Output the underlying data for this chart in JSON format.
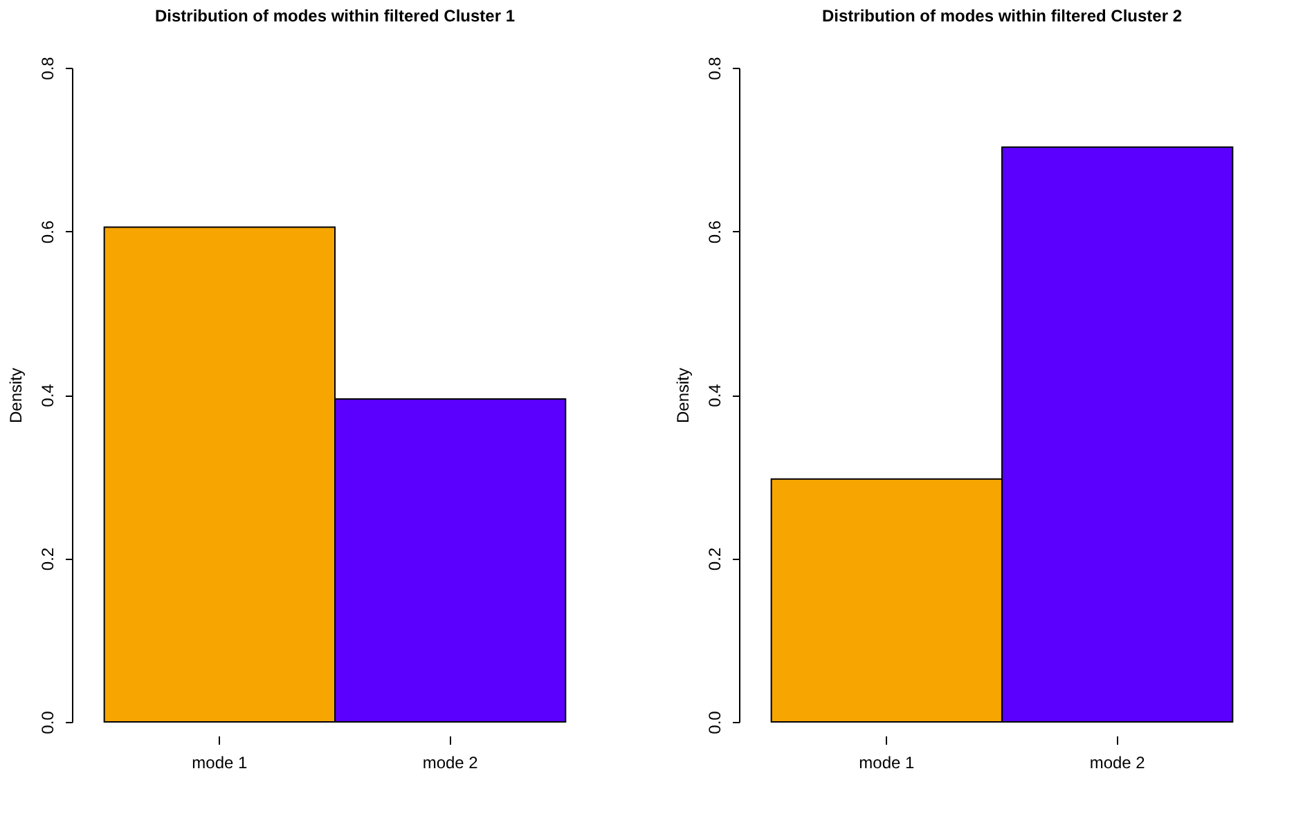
{
  "chart_data": [
    {
      "type": "bar",
      "title": "Distribution of modes within filtered Cluster 1",
      "ylabel": "Density",
      "categories": [
        "mode 1",
        "mode 2"
      ],
      "values": [
        0.605,
        0.395
      ],
      "colors": [
        "#f7a500",
        "#5b00ff"
      ],
      "ylim": [
        0,
        0.8
      ],
      "yticks": [
        {
          "value": 0,
          "label": "0.0"
        },
        0.2,
        0.4,
        0.6,
        0.8
      ],
      "grid": false
    },
    {
      "type": "bar",
      "title": "Distribution of modes within filtered Cluster 2",
      "ylabel": "Density",
      "categories": [
        "mode 1",
        "mode 2"
      ],
      "values": [
        0.297,
        0.703
      ],
      "colors": [
        "#f7a500",
        "#5b00ff"
      ],
      "ylim": [
        0,
        0.8
      ],
      "yticks": [
        {
          "value": 0,
          "label": "0.0"
        },
        0.2,
        0.4,
        0.6,
        0.8
      ],
      "grid": false
    }
  ]
}
